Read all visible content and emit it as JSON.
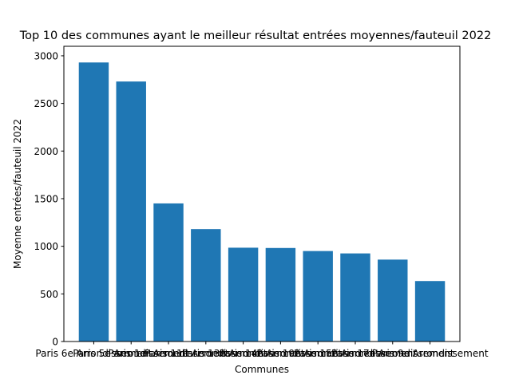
{
  "chart_data": {
    "type": "bar",
    "title": "Top 10 des communes ayant le meilleur résultat entrées moyennes/fauteuil 2022",
    "xlabel": "Communes",
    "ylabel": "Moyenne entrées/fauteuil 2022",
    "ylim": [
      0,
      3100
    ],
    "yticks": [
      0,
      500,
      1000,
      1500,
      2000,
      2500,
      3000
    ],
    "grid": false,
    "legend": "none",
    "bar_color": "#1f77b4",
    "categories": [
      "Paris 6e Arrondissement",
      "Paris 5e Arrondissement",
      "Paris 1er Arrondissement",
      "Paris 11e Arrondissement",
      "Paris 13e Arrondissement",
      "Paris 14e Arrondissement",
      "Paris 19e Arrondissement",
      "Paris 15e Arrondissement",
      "Paris 17e Arrondissement",
      "Paris 9e Arrondissement"
    ],
    "values": [
      2930,
      2730,
      1450,
      1180,
      985,
      982,
      950,
      925,
      860,
      635
    ]
  }
}
